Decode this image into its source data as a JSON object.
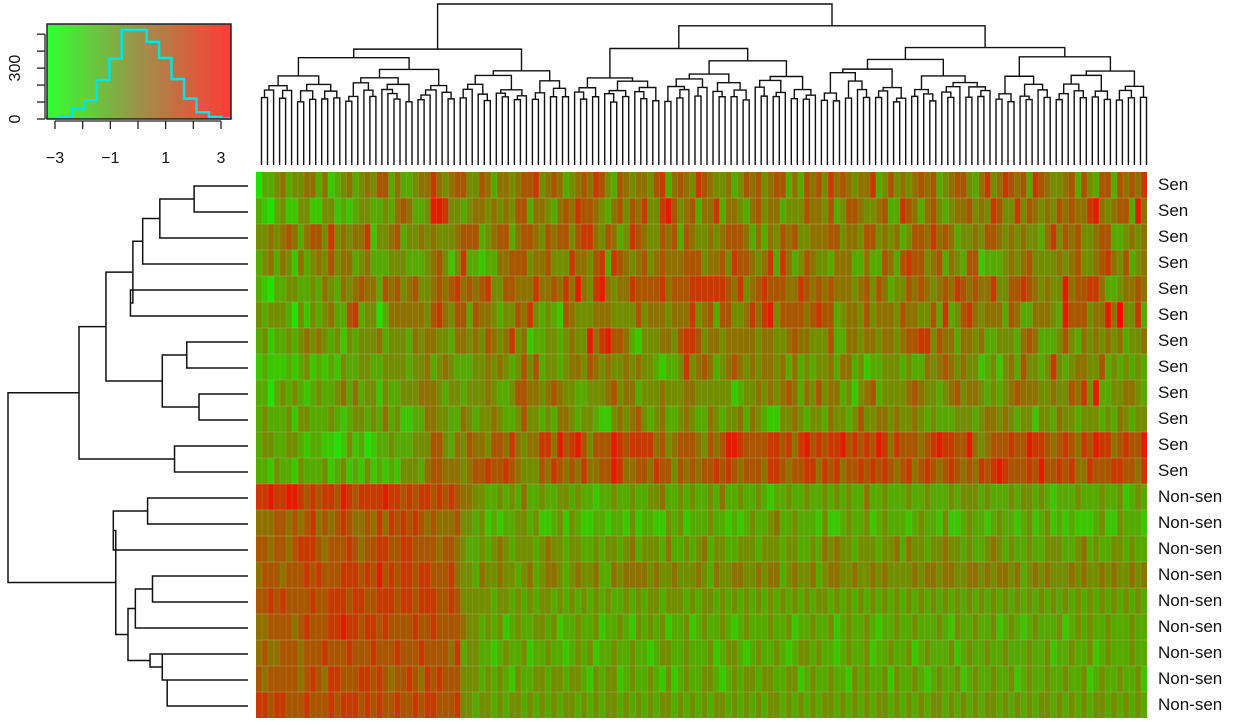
{
  "chart_data": {
    "type": "heatmap",
    "title": "",
    "xlabel": "",
    "ylabel": "",
    "n_columns": 148,
    "row_labels": [
      "Sen",
      "Sen",
      "Sen",
      "Sen",
      "Sen",
      "Sen",
      "Sen",
      "Sen",
      "Sen",
      "Sen",
      "Sen",
      "Sen",
      "Non-sen",
      "Non-sen",
      "Non-sen",
      "Non-sen",
      "Non-sen",
      "Non-sen",
      "Non-sen",
      "Non-sen",
      "Non-sen"
    ],
    "value_encoding": "each character 0-9 maps linearly to z-score -3..+3 (0 = green, 9 = red)",
    "matrix": [
      "1334534455352345345466353345575456644653554566745653456576436545546735654765445346564566353656475654557346454565634566435745765637654456364366365657",
      "3213422442244232344334356533488744345545454663554356576654356465744786456355735543564553444655463466544563376535643455645476447465454656557854566385",
      "4454565356647454557244563445454445666345663566546566467754653476544656365445456665353546564455566455466454534665756534454665454544357465644566334545",
      "3453542534546455345333444333456424733233556664556444755467376545645655566645564766545737534654435553353365367664563543662333454564444545644567546345",
      "3213344334354354565536564564456567565674466555755657585478545576666756667777776574567666557656565554564653446565456576565574466765454485667753345565",
      "4344431424345336734413555555467546636554344657434326544455544446455545557456366445757846666567663455464555465544637346754555365335554386664558594473",
      "3423343454543424344453444354554435545465457452334434544857866532444554677645545555545544565544463355455455456677465535545334443565333464354545453445",
      "2322232342323243344334444344534543334454543464634434554654544545443233474565345654545545353434453553423344434335456545442342453644347434554463434343",
      "3313434323433453534424334445554344344454334665545654433444564553444544455444444234454545653546455342456344445654434564554343456555445446574833445543",
      "3433342443334323443435342233554433543445433464434355434432245456434533454335434453543224454344354434644554544543433344434554543442443544344434354344",
      "3443344323322124231233433344466435465546657545577586786466687677775645666546568876666776757867677867676875766656787766854566676687765676576877567668",
      "3324332433342342324232324443566555456676676544465765657556687556657664656566767656665776566775767566767676567567656765657678766676866767557666776657",
      "7787788767677687677778776767767676554433434353343344343323343343344533434334353343343233433433434343353343334334333434443433343443432333433343342343",
      "5556656567565676556575767676565556443423233443422342432233233242332243423334332323433453343332422343342343332343324223433234332342342323222342243332",
      "6656656777656667656677667766665665433434543444345443443343443453444353343453443344434443443343545443444344535443445443433454343343344433453433443433",
      "5666566676766677767686767767766675443544544345345543454453354555545445444543544554454553454453455445445454444545545544554545545345454445454454544545",
      "6676766667667776776677767767776676444443443434344343434343433434344344434344343434343434343434434343434343434343434343434343434343434343434343434343",
      "5566665676667787767767666676676666544343423433443423343342334324343423342343343234333433423343342343343233433433343243343342343234333423434334333433",
      "5655666566676667666766676667666657344332343342334332343423343343323443343334234432343343234434332343342334334234333423433433433343342334334234333433",
      "6566666567657766677676566765767666444343432433443443443243442343343242343344323434434433442343343324343342433432343342343343342343343343342343343342",
      "7767766676667677767676676676776667443443434434343434434343443434343443434343443434343443434343443434343443434343443434343443434343443434343443434343"
    ],
    "row_dendrogram": {
      "orientation": "left",
      "merges": [
        [
          0,
          1,
          0.22
        ],
        [
          10,
          11,
          0.3
        ],
        [
          8,
          9,
          0.2
        ],
        [
          6,
          7,
          0.25
        ],
        [
          4,
          5,
          0.48
        ],
        [
          2,
          "m0",
          0.36
        ],
        [
          3,
          "m5",
          0.43
        ],
        [
          "m6",
          "m4",
          0.47
        ],
        [
          "m3",
          "m2",
          0.35
        ],
        [
          "m7",
          "m8",
          0.58
        ],
        [
          "m9",
          "m1",
          0.69
        ],
        [
          12,
          13,
          0.41
        ],
        [
          15,
          16,
          0.39
        ],
        [
          18,
          19,
          0.35
        ],
        [
          19,
          20,
          0.33
        ],
        [
          17,
          "m12",
          0.46
        ],
        [
          "m13",
          18,
          0.4
        ],
        [
          "m16",
          "m15",
          0.49
        ],
        [
          14,
          "m11",
          0.55
        ],
        [
          "m18",
          "m17",
          0.54
        ],
        [
          "m10",
          "m19",
          0.98
        ]
      ]
    },
    "column_dendrogram": {
      "orientation": "top",
      "leaves": 148
    },
    "color_key": {
      "type": "histogram",
      "x_ticks": [
        -3,
        -2,
        -1,
        0,
        1,
        2,
        3
      ],
      "x_tick_labels": [
        "-3",
        "-1",
        "1",
        "3"
      ],
      "x_tick_label_values": [
        -3,
        -1,
        1,
        3
      ],
      "y_ticks": [
        0,
        100,
        200,
        300,
        400,
        500
      ],
      "y_tick_labels": [
        "0",
        "300"
      ],
      "y_tick_label_values": [
        0,
        300
      ],
      "xlim": [
        -3.35,
        3.3
      ],
      "ylim": [
        0,
        560
      ],
      "bin_edges": [
        -3.35,
        -2.9,
        -2.45,
        -2.0,
        -1.55,
        -1.1,
        -0.65,
        -0.2,
        0.25,
        0.7,
        1.15,
        1.6,
        2.05,
        2.5,
        2.95,
        3.3
      ],
      "counts": [
        5,
        12,
        60,
        110,
        230,
        355,
        525,
        525,
        455,
        360,
        235,
        120,
        40,
        12,
        3
      ],
      "line_color": "#00e5e5",
      "low_color": "#33ff33",
      "high_color": "#ff3333"
    },
    "colors": {
      "low": "#00ff00",
      "mid": "#808000",
      "high": "#ff0000"
    }
  }
}
